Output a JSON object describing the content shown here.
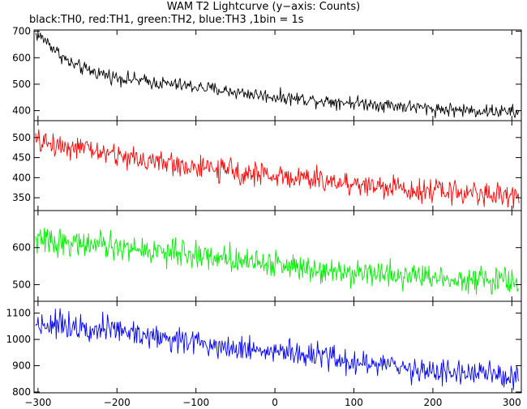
{
  "title": "WAM T2 Lightcurve (y−axis: Counts)",
  "subtitle": "black:TH0, red:TH1, green:TH2, blue:TH3 ,1bin = 1s",
  "chart_data": {
    "type": "line",
    "title": "WAM T2 Lightcurve (y−axis: Counts)",
    "x": {
      "range": [
        -305,
        312
      ],
      "ticks": [
        -300,
        -200,
        -100,
        0,
        100,
        200,
        300
      ],
      "bin_seconds": 1
    },
    "series": [
      {
        "name": "TH0",
        "color": "#000000",
        "ylim": [
          362,
          705
        ],
        "yticks": [
          400,
          500,
          600,
          700
        ],
        "trend": [
          [
            -303,
            690
          ],
          [
            -290,
            665
          ],
          [
            -275,
            620
          ],
          [
            -260,
            580
          ],
          [
            -240,
            555
          ],
          [
            -200,
            525
          ],
          [
            -150,
            505
          ],
          [
            -100,
            490
          ],
          [
            -50,
            470
          ],
          [
            0,
            452
          ],
          [
            50,
            440
          ],
          [
            100,
            430
          ],
          [
            150,
            420
          ],
          [
            200,
            407
          ],
          [
            250,
            400
          ],
          [
            300,
            395
          ],
          [
            309,
            392
          ]
        ],
        "noise": 16
      },
      {
        "name": "TH1",
        "color": "#ff0000",
        "ylim": [
          318,
          542
        ],
        "yticks": [
          350,
          400,
          450,
          500
        ],
        "trend": [
          [
            -303,
            490
          ],
          [
            -250,
            475
          ],
          [
            -200,
            455
          ],
          [
            -150,
            440
          ],
          [
            -100,
            425
          ],
          [
            -50,
            415
          ],
          [
            0,
            405
          ],
          [
            50,
            395
          ],
          [
            100,
            385
          ],
          [
            150,
            375
          ],
          [
            200,
            368
          ],
          [
            250,
            362
          ],
          [
            300,
            355
          ],
          [
            309,
            352
          ]
        ],
        "noise": 18
      },
      {
        "name": "TH2",
        "color": "#00ee00",
        "ylim": [
          455,
          700
        ],
        "yticks": [
          500,
          600
        ],
        "trend": [
          [
            -303,
            620
          ],
          [
            -250,
            612
          ],
          [
            -200,
            600
          ],
          [
            -150,
            590
          ],
          [
            -100,
            580
          ],
          [
            -50,
            570
          ],
          [
            0,
            555
          ],
          [
            50,
            545
          ],
          [
            100,
            535
          ],
          [
            150,
            528
          ],
          [
            200,
            520
          ],
          [
            250,
            515
          ],
          [
            300,
            508
          ],
          [
            309,
            505
          ]
        ],
        "noise": 22
      },
      {
        "name": "TH3",
        "color": "#0000ff",
        "ylim": [
          797,
          1145
        ],
        "yticks": [
          800,
          900,
          1000,
          1100
        ],
        "trend": [
          [
            -303,
            1060
          ],
          [
            -250,
            1055
          ],
          [
            -200,
            1035
          ],
          [
            -150,
            1010
          ],
          [
            -100,
            990
          ],
          [
            -50,
            970
          ],
          [
            0,
            955
          ],
          [
            50,
            935
          ],
          [
            100,
            915
          ],
          [
            150,
            895
          ],
          [
            200,
            880
          ],
          [
            250,
            870
          ],
          [
            300,
            860
          ],
          [
            309,
            858
          ]
        ],
        "noise": 30
      }
    ]
  }
}
